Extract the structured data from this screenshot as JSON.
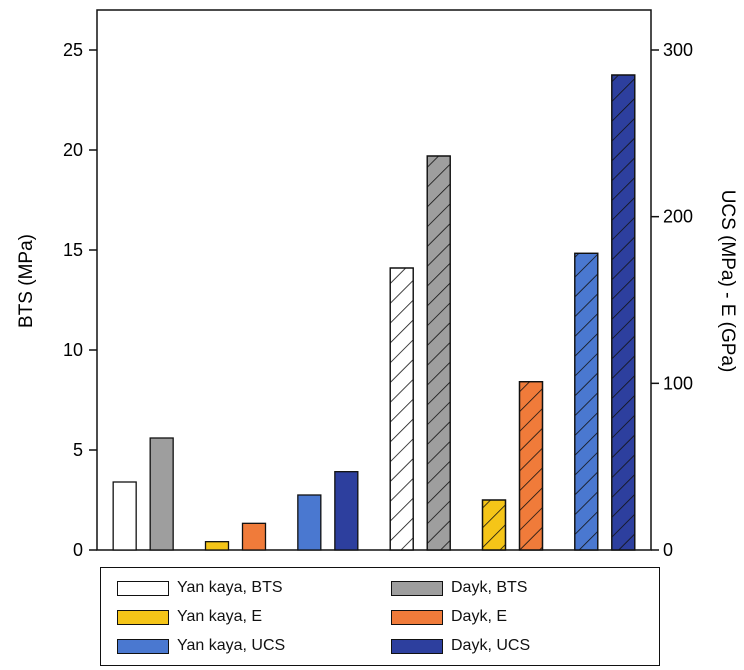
{
  "chart_data": {
    "type": "bar",
    "xlabel": "",
    "ylabel": "BTS (MPa)",
    "ylabel_right": "UCS (MPa) - E (GPa)",
    "ylim": [
      0,
      27
    ],
    "ylim_right": [
      0,
      324
    ],
    "yticks": [
      0,
      5,
      10,
      15,
      20,
      25
    ],
    "yticks_right": [
      0,
      100,
      200,
      300
    ],
    "grid": false,
    "legend_position": "bottom",
    "groups": [
      {
        "bars": [
          {
            "series": "Yan kaya, BTS",
            "axis": "left",
            "value": 3.4
          },
          {
            "series": "Dayk, BTS",
            "axis": "left",
            "value": 5.6
          }
        ]
      },
      {
        "bars": [
          {
            "series": "Yan kaya, E",
            "axis": "right",
            "value": 5
          },
          {
            "series": "Dayk, E",
            "axis": "right",
            "value": 16
          }
        ]
      },
      {
        "bars": [
          {
            "series": "Yan kaya, UCS",
            "axis": "right",
            "value": 33
          },
          {
            "series": "Dayk, UCS",
            "axis": "right",
            "value": 47
          }
        ]
      },
      {
        "bars": [
          {
            "series": "Yan kaya, BTS",
            "axis": "left",
            "value": 14.1,
            "hatched": true
          },
          {
            "series": "Dayk, BTS",
            "axis": "left",
            "value": 19.7,
            "hatched": true
          }
        ]
      },
      {
        "bars": [
          {
            "series": "Yan kaya, E",
            "axis": "right",
            "value": 30,
            "hatched": true
          },
          {
            "series": "Dayk, E",
            "axis": "right",
            "value": 101,
            "hatched": true
          }
        ]
      },
      {
        "bars": [
          {
            "series": "Yan kaya, UCS",
            "axis": "right",
            "value": 178,
            "hatched": true
          },
          {
            "series": "Dayk, UCS",
            "axis": "right",
            "value": 285,
            "hatched": true
          }
        ]
      }
    ],
    "series": [
      {
        "name": "Yan kaya, BTS",
        "color": "#ffffff"
      },
      {
        "name": "Dayk, BTS",
        "color": "#9e9e9e"
      },
      {
        "name": "Yan kaya, E",
        "color": "#f5c518"
      },
      {
        "name": "Dayk, E",
        "color": "#f07b3a"
      },
      {
        "name": "Yan kaya, UCS",
        "color": "#4a78d0"
      },
      {
        "name": "Dayk, UCS",
        "color": "#2d3f9e"
      }
    ]
  },
  "legend": {
    "items": [
      {
        "label": "Yan kaya, BTS",
        "color": "#ffffff"
      },
      {
        "label": "Dayk, BTS",
        "color": "#9e9e9e"
      },
      {
        "label": "Yan kaya, E",
        "color": "#f5c518"
      },
      {
        "label": "Dayk, E",
        "color": "#f07b3a"
      },
      {
        "label": "Yan kaya, UCS",
        "color": "#4a78d0"
      },
      {
        "label": "Dayk, UCS",
        "color": "#2d3f9e"
      }
    ]
  }
}
